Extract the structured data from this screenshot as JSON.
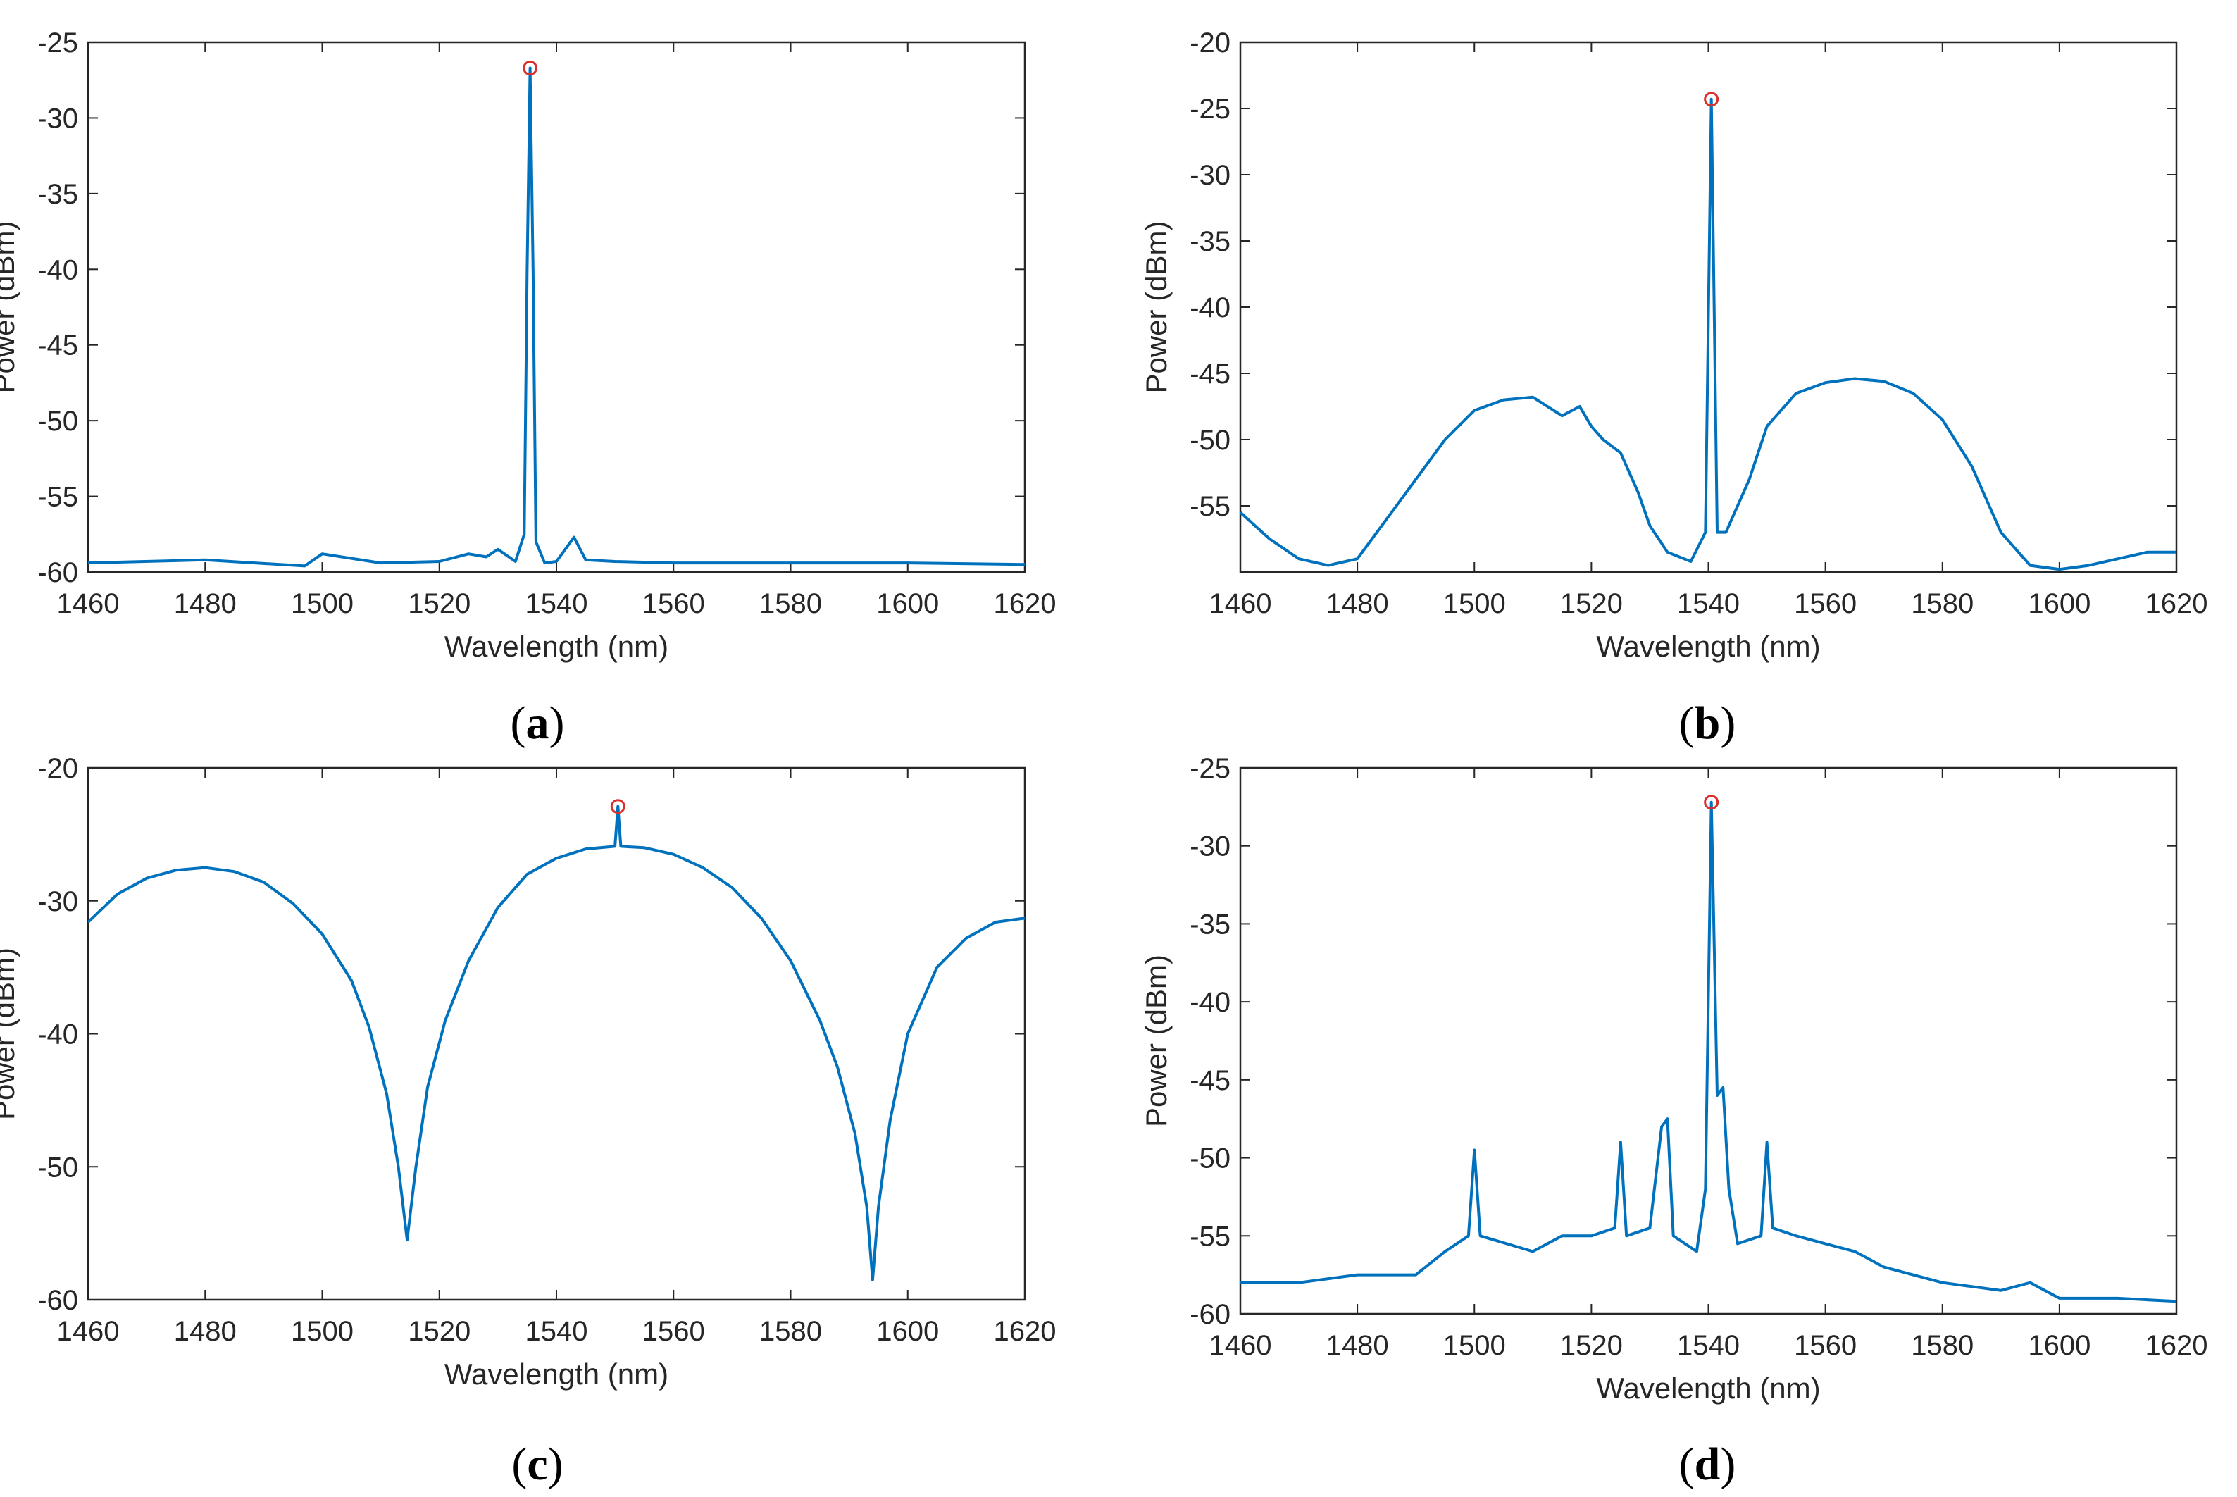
{
  "figure": {
    "colors": {
      "line": "#0072BD",
      "peak_marker": "#D9302C",
      "axes": "#262626"
    }
  },
  "chart_data": [
    {
      "id": "a",
      "type": "line",
      "caption_letter": "a",
      "xlabel": "Wavelength (nm)",
      "ylabel": "Power (dBm)",
      "xlim": [
        1460,
        1620
      ],
      "ylim": [
        -60,
        -25
      ],
      "xticks": [
        1460,
        1480,
        1500,
        1520,
        1540,
        1560,
        1580,
        1600,
        1620
      ],
      "yticks": [
        -25,
        -30,
        -35,
        -40,
        -45,
        -50,
        -55,
        -60
      ],
      "grid": false,
      "legend": "none",
      "peak": {
        "x": 1535.5,
        "y": -26.7
      },
      "series": [
        {
          "x": [
            1460,
            1480,
            1497,
            1500,
            1510,
            1520,
            1525,
            1528,
            1530,
            1533,
            1534.5,
            1535,
            1535.5,
            1536,
            1536.5,
            1538,
            1540,
            1543,
            1545,
            1550,
            1560,
            1580,
            1600,
            1620
          ],
          "y": [
            -59.4,
            -59.2,
            -59.6,
            -58.8,
            -59.4,
            -59.3,
            -58.8,
            -59.0,
            -58.5,
            -59.3,
            -57.5,
            -40.0,
            -26.7,
            -40.0,
            -58.0,
            -59.4,
            -59.3,
            -57.7,
            -59.2,
            -59.3,
            -59.4,
            -59.4,
            -59.4,
            -59.5
          ]
        }
      ]
    },
    {
      "id": "b",
      "type": "line",
      "caption_letter": "b",
      "xlabel": "Wavelength (nm)",
      "ylabel": "Power (dBm)",
      "xlim": [
        1460,
        1620
      ],
      "ylim": [
        -60,
        -20
      ],
      "xticks": [
        1460,
        1480,
        1500,
        1520,
        1540,
        1560,
        1580,
        1600,
        1620
      ],
      "yticks": [
        -20,
        -25,
        -30,
        -35,
        -40,
        -45,
        -50,
        -55
      ],
      "grid": false,
      "legend": "none",
      "peak": {
        "x": 1540.5,
        "y": -24.3
      },
      "series": [
        {
          "x": [
            1460,
            1465,
            1470,
            1475,
            1480,
            1485,
            1490,
            1495,
            1500,
            1505,
            1510,
            1515,
            1518,
            1520,
            1522,
            1525,
            1528,
            1530,
            1533,
            1537,
            1539.5,
            1540.5,
            1541.5,
            1543,
            1547,
            1550,
            1555,
            1560,
            1565,
            1570,
            1575,
            1580,
            1585,
            1590,
            1595,
            1600,
            1605,
            1610,
            1615,
            1620
          ],
          "y": [
            -55.5,
            -57.5,
            -59.0,
            -59.5,
            -59.0,
            -56.0,
            -53.0,
            -50.0,
            -47.8,
            -47.0,
            -46.8,
            -48.2,
            -47.5,
            -49.0,
            -50.0,
            -51.0,
            -54.0,
            -56.5,
            -58.5,
            -59.2,
            -57.0,
            -24.3,
            -57.0,
            -57.0,
            -53.0,
            -49.0,
            -46.5,
            -45.7,
            -45.4,
            -45.6,
            -46.5,
            -48.5,
            -52.0,
            -57.0,
            -59.5,
            -59.8,
            -59.5,
            -59.0,
            -58.5,
            -58.5
          ]
        }
      ]
    },
    {
      "id": "c",
      "type": "line",
      "caption_letter": "c",
      "xlabel": "Wavelength (nm)",
      "ylabel": "Power (dBm)",
      "xlim": [
        1460,
        1620
      ],
      "ylim": [
        -60,
        -20
      ],
      "xticks": [
        1460,
        1480,
        1500,
        1520,
        1540,
        1560,
        1580,
        1600,
        1620
      ],
      "yticks": [
        -20,
        -30,
        -40,
        -50,
        -60
      ],
      "grid": false,
      "legend": "none",
      "peak": {
        "x": 1550.5,
        "y": -22.9
      },
      "series": [
        {
          "x": [
            1460,
            1465,
            1470,
            1475,
            1480,
            1485,
            1490,
            1495,
            1500,
            1505,
            1508,
            1511,
            1513,
            1514.5,
            1516,
            1518,
            1521,
            1525,
            1530,
            1535,
            1540,
            1545,
            1550,
            1550.5,
            1551,
            1555,
            1560,
            1565,
            1570,
            1575,
            1580,
            1585,
            1588,
            1591,
            1593,
            1594,
            1595,
            1597,
            1600,
            1605,
            1610,
            1615,
            1620
          ],
          "y": [
            -31.6,
            -29.5,
            -28.3,
            -27.7,
            -27.5,
            -27.8,
            -28.6,
            -30.2,
            -32.5,
            -36.0,
            -39.5,
            -44.5,
            -50.0,
            -55.5,
            -50.0,
            -44.0,
            -39.0,
            -34.5,
            -30.5,
            -28.0,
            -26.8,
            -26.1,
            -25.9,
            -22.9,
            -25.9,
            -26.0,
            -26.5,
            -27.5,
            -29.0,
            -31.3,
            -34.5,
            -39.0,
            -42.5,
            -47.5,
            -53.0,
            -58.5,
            -53.0,
            -46.5,
            -40.0,
            -35.0,
            -32.8,
            -31.6,
            -31.3
          ]
        }
      ]
    },
    {
      "id": "d",
      "type": "line",
      "caption_letter": "d",
      "xlabel": "Wavelength (nm)",
      "ylabel": "Power (dBm)",
      "xlim": [
        1460,
        1620
      ],
      "ylim": [
        -60,
        -25
      ],
      "xticks": [
        1460,
        1480,
        1500,
        1520,
        1540,
        1560,
        1580,
        1600,
        1620
      ],
      "yticks": [
        -25,
        -30,
        -35,
        -40,
        -45,
        -50,
        -55,
        -60
      ],
      "grid": false,
      "legend": "none",
      "peak": {
        "x": 1540.5,
        "y": -27.2
      },
      "series": [
        {
          "x": [
            1460,
            1470,
            1480,
            1490,
            1495,
            1499,
            1500,
            1501,
            1510,
            1515,
            1520,
            1524,
            1525,
            1526,
            1530,
            1532,
            1533,
            1534,
            1538,
            1539.5,
            1540.5,
            1541.5,
            1542.5,
            1543.5,
            1545,
            1549,
            1550,
            1551,
            1555,
            1560,
            1565,
            1570,
            1580,
            1590,
            1595,
            1600,
            1610,
            1620
          ],
          "y": [
            -58.0,
            -58.0,
            -57.5,
            -57.5,
            -56.0,
            -55.0,
            -49.5,
            -55.0,
            -56.0,
            -55.0,
            -55.0,
            -54.5,
            -49.0,
            -55.0,
            -54.5,
            -48.0,
            -47.5,
            -55.0,
            -56.0,
            -52.0,
            -27.2,
            -46.0,
            -45.5,
            -52.0,
            -55.5,
            -55.0,
            -49.0,
            -54.5,
            -55.0,
            -55.5,
            -56.0,
            -57.0,
            -58.0,
            -58.5,
            -58.0,
            -59.0,
            -59.0,
            -59.2
          ]
        }
      ]
    }
  ]
}
